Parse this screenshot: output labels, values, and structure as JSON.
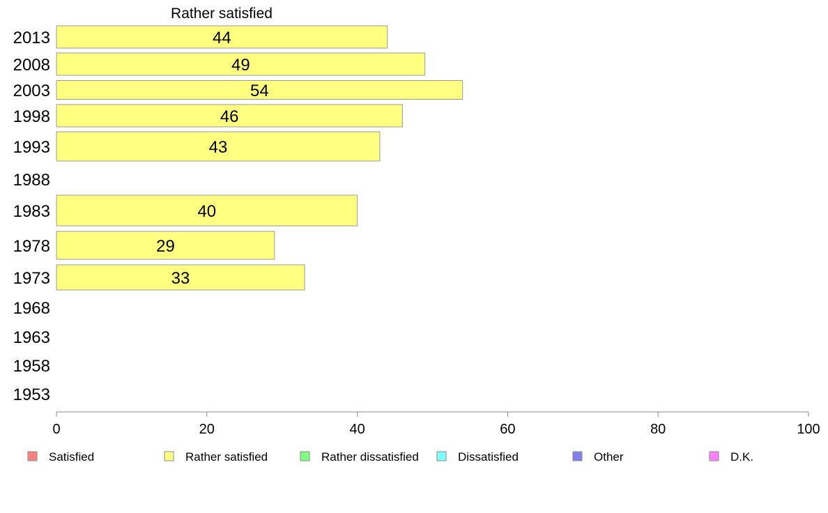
{
  "chart_data": {
    "type": "bar",
    "orientation": "horizontal",
    "title": "Rather satisfied",
    "categories": [
      "2013",
      "2008",
      "2003",
      "1998",
      "1993",
      "1988",
      "1983",
      "1978",
      "1973",
      "1968",
      "1963",
      "1958",
      "1953"
    ],
    "series": [
      {
        "name": "Rather satisfied",
        "color": "#ffff80",
        "values": [
          44,
          49,
          54,
          46,
          43,
          null,
          40,
          29,
          33,
          null,
          null,
          null,
          null
        ]
      }
    ],
    "xlim": [
      0,
      100
    ],
    "xticks": [
      0,
      20,
      40,
      60,
      80,
      100
    ],
    "grid": false,
    "legend_placement": "bottom",
    "legend": [
      {
        "label": "Satisfied",
        "color": "#ff8080"
      },
      {
        "label": "Rather satisfied",
        "color": "#ffff80"
      },
      {
        "label": "Rather dissatisfied",
        "color": "#80ff80"
      },
      {
        "label": "Dissatisfied",
        "color": "#80ffff"
      },
      {
        "label": "Other",
        "color": "#8080ee"
      },
      {
        "label": "D.K.",
        "color": "#ff80ff"
      }
    ]
  }
}
